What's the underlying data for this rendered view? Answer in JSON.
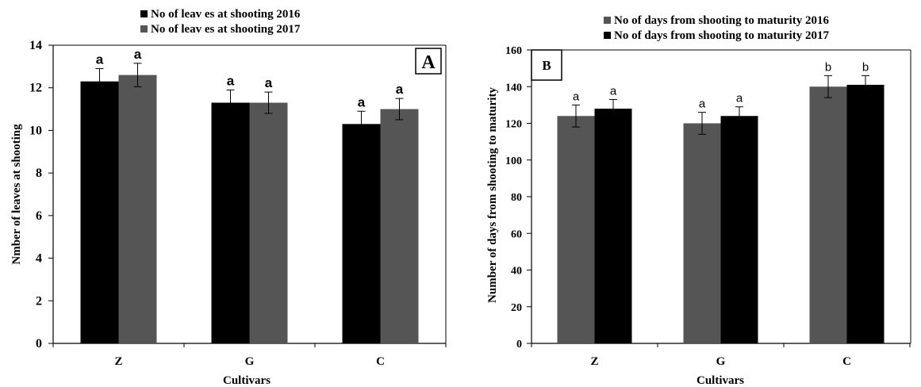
{
  "chart_data": [
    {
      "type": "bar",
      "panel_label": "A",
      "categories": [
        "Z",
        "G",
        "C"
      ],
      "xlabel": "Cultivars",
      "ylabel": "Nmber  of leaves at shooting",
      "ylim": [
        0,
        14
      ],
      "yticks": [
        0,
        2,
        4,
        6,
        8,
        10,
        12,
        14
      ],
      "legend_position": "top",
      "series": [
        {
          "name": "No of leav es at shooting 2016",
          "color": "#000000",
          "values": [
            12.3,
            11.3,
            10.3
          ],
          "errors": [
            0.6,
            0.6,
            0.6
          ],
          "significance": [
            "a",
            "a",
            "a"
          ]
        },
        {
          "name": "No of leav es at shooting 2017",
          "color": "#555555",
          "values": [
            12.6,
            11.3,
            11.0
          ],
          "errors": [
            0.55,
            0.5,
            0.5
          ],
          "significance": [
            "a",
            "a",
            "a"
          ]
        }
      ]
    },
    {
      "type": "bar",
      "panel_label": "B",
      "categories": [
        "Z",
        "G",
        "C"
      ],
      "xlabel": "Cultivars",
      "ylabel": "Number of days from shooting to maturity",
      "ylim": [
        0,
        160
      ],
      "yticks": [
        0,
        20,
        40,
        60,
        80,
        100,
        120,
        140,
        160
      ],
      "legend_position": "top",
      "series": [
        {
          "name": "No of days from shooting to maturity 2016",
          "color": "#555555",
          "values": [
            124,
            120,
            140
          ],
          "errors": [
            6,
            6,
            6
          ],
          "significance": [
            "a",
            "a",
            "b"
          ]
        },
        {
          "name": "No of days from shooting to maturity 2017",
          "color": "#000000",
          "values": [
            128,
            124,
            141
          ],
          "errors": [
            5,
            5,
            5
          ],
          "significance": [
            "a",
            "a",
            "b"
          ]
        }
      ]
    }
  ]
}
